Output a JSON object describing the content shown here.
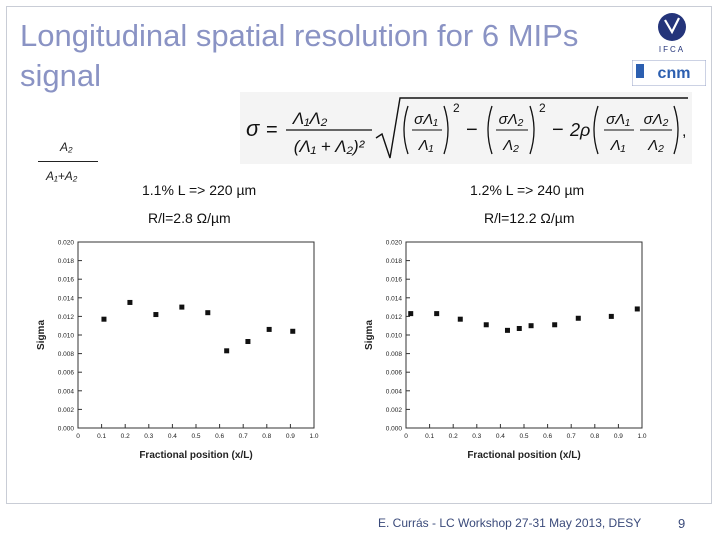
{
  "slide": {
    "title": "Longitudinal  spatial resolution for 6 MIPs signal",
    "fraction": {
      "numerator": "A₂",
      "denominator": "A₁+A₂"
    },
    "footer": "E. Currás -  LC Workshop 27-31 May 2013, DESY",
    "page_number": "9"
  },
  "logos": {
    "top": "IFCA",
    "bottom": "cnm"
  },
  "formula": {
    "sigma": "σ",
    "equals": "=",
    "lhs_num": "Λ₁Λ₂",
    "lhs_den": "(Λ₁ + Λ₂)²",
    "term1_num": "σΛ₁",
    "term1_den": "Λ₁",
    "term2_num": "σΛ₂",
    "term2_den": "Λ₂",
    "minus": "−",
    "two_rho": "2ρ",
    "exp": "2",
    "comma": ","
  },
  "chart_labels": [
    {
      "line1": "1.1% L => 220 µm",
      "line2": "R/l=2.8 Ω/µm"
    },
    {
      "line1": "1.2% L => 240 µm",
      "line2": "R/l=12.2 Ω/µm"
    }
  ],
  "chart_data": [
    {
      "type": "scatter",
      "xlabel": "Fractional position (x/L)",
      "ylabel": "Sigma",
      "xlim": [
        0,
        1.0
      ],
      "ylim": [
        0,
        0.02
      ],
      "x_ticks": [
        "0",
        "0.1",
        "0.2",
        "0.3",
        "0.4",
        "0.5",
        "0.6",
        "0.7",
        "0.8",
        "0.9",
        "1.0"
      ],
      "y_ticks": [
        "0.000",
        "0.002",
        "0.004",
        "0.006",
        "0.008",
        "0.010",
        "0.012",
        "0.014",
        "0.016",
        "0.018",
        "0.020"
      ],
      "grid": false,
      "series": [
        {
          "x": [
            0.11,
            0.22,
            0.33,
            0.44,
            0.55,
            0.63,
            0.72,
            0.81,
            0.91
          ],
          "y": [
            0.0117,
            0.0135,
            0.0122,
            0.013,
            0.0124,
            0.0083,
            0.0093,
            0.0106,
            0.0104
          ]
        }
      ]
    },
    {
      "type": "scatter",
      "xlabel": "Fractional position (x/L)",
      "ylabel": "Sigma",
      "xlim": [
        0,
        1.0
      ],
      "ylim": [
        0,
        0.02
      ],
      "x_ticks": [
        "0",
        "0.1",
        "0.2",
        "0.3",
        "0.4",
        "0.5",
        "0.6",
        "0.7",
        "0.8",
        "0.9",
        "1.0"
      ],
      "y_ticks": [
        "0.000",
        "0.002",
        "0.004",
        "0.006",
        "0.008",
        "0.010",
        "0.012",
        "0.014",
        "0.016",
        "0.018",
        "0.020"
      ],
      "grid": false,
      "series": [
        {
          "x": [
            0.02,
            0.13,
            0.23,
            0.34,
            0.43,
            0.48,
            0.53,
            0.63,
            0.73,
            0.87,
            0.98
          ],
          "y": [
            0.0123,
            0.0123,
            0.0117,
            0.0111,
            0.0105,
            0.0107,
            0.011,
            0.0111,
            0.0118,
            0.012,
            0.0128
          ]
        }
      ]
    }
  ]
}
